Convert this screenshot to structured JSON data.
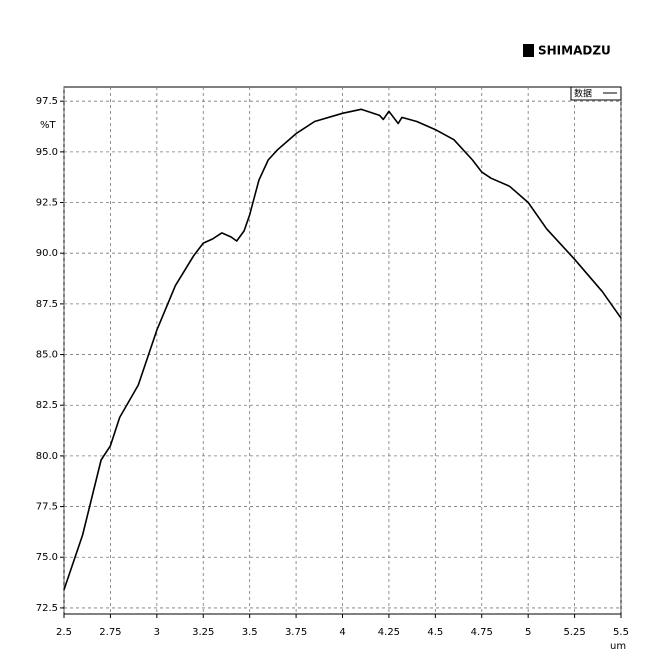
{
  "chart_data": {
    "type": "line",
    "brand": "SHIMADZU",
    "ylabel": "%T",
    "xlabel": "um",
    "x": [
      2.5,
      2.6,
      2.7,
      2.75,
      2.8,
      2.9,
      3.0,
      3.1,
      3.2,
      3.25,
      3.3,
      3.35,
      3.4,
      3.43,
      3.47,
      3.5,
      3.55,
      3.6,
      3.65,
      3.75,
      3.85,
      4.0,
      4.1,
      4.2,
      4.22,
      4.25,
      4.3,
      4.32,
      4.4,
      4.5,
      4.6,
      4.7,
      4.75,
      4.8,
      4.9,
      5.0,
      5.1,
      5.25,
      5.4,
      5.5
    ],
    "series": [
      {
        "name": "数据",
        "color": "#000000",
        "values": [
          73.4,
          76.1,
          79.8,
          80.5,
          81.9,
          83.5,
          86.2,
          88.4,
          89.9,
          90.5,
          90.7,
          91.0,
          90.8,
          90.6,
          91.1,
          91.9,
          93.6,
          94.6,
          95.1,
          95.9,
          96.5,
          96.9,
          97.1,
          96.8,
          96.6,
          97.0,
          96.4,
          96.7,
          96.5,
          96.1,
          95.6,
          94.6,
          94.0,
          93.7,
          93.3,
          92.5,
          91.2,
          89.7,
          88.1,
          86.8
        ]
      }
    ],
    "xlim": [
      2.5,
      5.5
    ],
    "ylim": [
      72.2,
      98.2
    ],
    "xticks": [
      2.5,
      2.75,
      3,
      3.25,
      3.5,
      3.75,
      4,
      4.25,
      4.5,
      4.75,
      5,
      5.25,
      5.5
    ],
    "yticks": [
      72.5,
      {
        "value": 75,
        "label": "75.0"
      },
      77.5,
      {
        "value": 80,
        "label": "80.0"
      },
      82.5,
      {
        "value": 85,
        "label": "85.0"
      },
      87.5,
      {
        "value": 90,
        "label": "90.0"
      },
      92.5,
      {
        "value": 95,
        "label": "95.0"
      },
      97.5
    ],
    "grid": true,
    "legend": "upper right"
  }
}
